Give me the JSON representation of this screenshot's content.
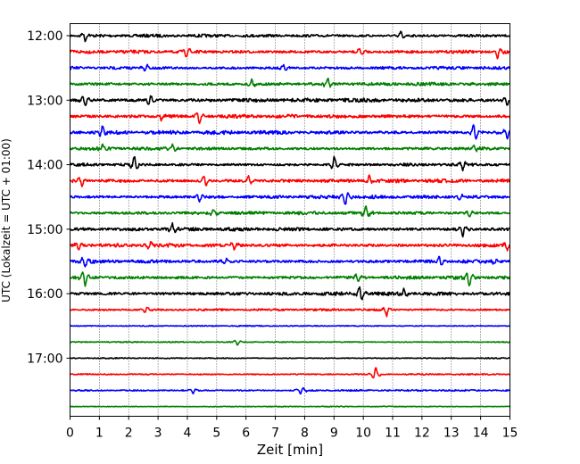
{
  "chart_data": {
    "type": "line",
    "title": "",
    "xlabel": "Zeit  [min]",
    "ylabel": "UTC (Lokalzeit = UTC + 01:00)",
    "xlim": [
      0,
      15
    ],
    "x_ticks": [
      0,
      1,
      2,
      3,
      4,
      5,
      6,
      7,
      8,
      9,
      10,
      11,
      12,
      13,
      14,
      15
    ],
    "x_tick_labels": [
      "0",
      "1",
      "2",
      "3",
      "4",
      "5",
      "6",
      "7",
      "8",
      "9",
      "10",
      "11",
      "12",
      "13",
      "14",
      "15"
    ],
    "y_tick_labels": [
      "12:00",
      "13:00",
      "14:00",
      "15:00",
      "16:00",
      "17:00"
    ],
    "grid": "vertical dotted",
    "color_cycle": [
      "#000000",
      "#ff0000",
      "#0000ff",
      "#008000"
    ],
    "traces": [
      {
        "start": "12:00",
        "color": "#000000",
        "level": 0.55,
        "events": [
          {
            "x": 0.5,
            "amp": 1.0
          },
          {
            "x": 11.3,
            "amp": 0.9
          }
        ]
      },
      {
        "start": "12:15",
        "color": "#ff0000",
        "level": 0.6,
        "events": [
          {
            "x": 4.0,
            "amp": 1.0
          },
          {
            "x": 9.9,
            "amp": 0.9
          },
          {
            "x": 14.6,
            "amp": 1.6
          }
        ]
      },
      {
        "start": "12:30",
        "color": "#0000ff",
        "level": 0.55,
        "events": [
          {
            "x": 2.6,
            "amp": 0.8
          },
          {
            "x": 7.3,
            "amp": 0.7
          }
        ]
      },
      {
        "start": "12:45",
        "color": "#008000",
        "level": 0.6,
        "events": [
          {
            "x": 6.2,
            "amp": 0.8
          },
          {
            "x": 8.8,
            "amp": 1.0
          }
        ]
      },
      {
        "start": "13:00",
        "color": "#000000",
        "level": 0.7,
        "events": [
          {
            "x": 0.5,
            "amp": 1.2
          },
          {
            "x": 2.7,
            "amp": 1.2
          },
          {
            "x": 14.9,
            "amp": 0.9
          }
        ]
      },
      {
        "start": "13:15",
        "color": "#ff0000",
        "level": 0.65,
        "events": [
          {
            "x": 3.1,
            "amp": 0.7
          },
          {
            "x": 4.4,
            "amp": 1.3
          }
        ]
      },
      {
        "start": "13:30",
        "color": "#0000ff",
        "level": 0.7,
        "events": [
          {
            "x": 1.1,
            "amp": 1.4
          },
          {
            "x": 13.8,
            "amp": 1.9
          },
          {
            "x": 14.9,
            "amp": 1.1
          }
        ]
      },
      {
        "start": "13:45",
        "color": "#008000",
        "level": 0.6,
        "events": [
          {
            "x": 1.1,
            "amp": 0.8
          },
          {
            "x": 3.5,
            "amp": 0.8
          },
          {
            "x": 13.8,
            "amp": 0.8
          }
        ]
      },
      {
        "start": "14:00",
        "color": "#000000",
        "level": 0.55,
        "events": [
          {
            "x": 2.2,
            "amp": 1.5
          },
          {
            "x": 9.0,
            "amp": 1.4
          },
          {
            "x": 13.4,
            "amp": 1.1
          }
        ]
      },
      {
        "start": "14:15",
        "color": "#ff0000",
        "level": 0.65,
        "events": [
          {
            "x": 0.4,
            "amp": 1.1
          },
          {
            "x": 4.6,
            "amp": 1.3
          },
          {
            "x": 6.1,
            "amp": 1.1
          },
          {
            "x": 10.2,
            "amp": 0.9
          }
        ]
      },
      {
        "start": "14:30",
        "color": "#0000ff",
        "level": 0.6,
        "events": [
          {
            "x": 4.4,
            "amp": 1.0
          },
          {
            "x": 9.4,
            "amp": 1.5
          },
          {
            "x": 13.3,
            "amp": 0.7
          }
        ]
      },
      {
        "start": "14:45",
        "color": "#008000",
        "level": 0.6,
        "events": [
          {
            "x": 4.9,
            "amp": 0.7
          },
          {
            "x": 10.1,
            "amp": 1.2
          },
          {
            "x": 13.6,
            "amp": 0.8
          }
        ]
      },
      {
        "start": "15:00",
        "color": "#000000",
        "level": 0.65,
        "events": [
          {
            "x": 3.5,
            "amp": 1.0
          },
          {
            "x": 13.4,
            "amp": 1.2
          }
        ]
      },
      {
        "start": "15:15",
        "color": "#ff0000",
        "level": 0.65,
        "events": [
          {
            "x": 0.3,
            "amp": 0.8
          },
          {
            "x": 2.7,
            "amp": 0.9
          },
          {
            "x": 5.6,
            "amp": 0.9
          },
          {
            "x": 14.9,
            "amp": 1.0
          }
        ]
      },
      {
        "start": "15:30",
        "color": "#0000ff",
        "level": 0.65,
        "events": [
          {
            "x": 0.5,
            "amp": 1.2
          },
          {
            "x": 5.3,
            "amp": 0.8
          },
          {
            "x": 12.6,
            "amp": 1.0
          },
          {
            "x": 14.5,
            "amp": 0.7
          }
        ]
      },
      {
        "start": "15:45",
        "color": "#008000",
        "level": 0.6,
        "events": [
          {
            "x": 0.5,
            "amp": 1.6
          },
          {
            "x": 9.8,
            "amp": 0.8
          },
          {
            "x": 13.6,
            "amp": 1.5
          }
        ]
      },
      {
        "start": "16:00",
        "color": "#000000",
        "level": 0.65,
        "events": [
          {
            "x": 9.9,
            "amp": 1.8
          },
          {
            "x": 11.4,
            "amp": 0.9
          }
        ]
      },
      {
        "start": "16:15",
        "color": "#ff0000",
        "level": 0.4,
        "events": [
          {
            "x": 2.6,
            "amp": 0.8
          },
          {
            "x": 10.8,
            "amp": 1.0
          }
        ]
      },
      {
        "start": "16:30",
        "color": "#0000ff",
        "level": 0.2,
        "events": []
      },
      {
        "start": "16:45",
        "color": "#008000",
        "level": 0.2,
        "events": [
          {
            "x": 5.7,
            "amp": 0.6
          }
        ]
      },
      {
        "start": "17:00",
        "color": "#000000",
        "level": 0.2,
        "events": []
      },
      {
        "start": "17:15",
        "color": "#ff0000",
        "level": 0.25,
        "events": [
          {
            "x": 10.4,
            "amp": 1.5
          }
        ]
      },
      {
        "start": "17:30",
        "color": "#0000ff",
        "level": 0.3,
        "events": [
          {
            "x": 7.9,
            "amp": 0.9
          },
          {
            "x": 4.2,
            "amp": 0.5
          }
        ]
      },
      {
        "start": "17:45",
        "color": "#008000",
        "level": 0.15,
        "events": []
      }
    ]
  }
}
